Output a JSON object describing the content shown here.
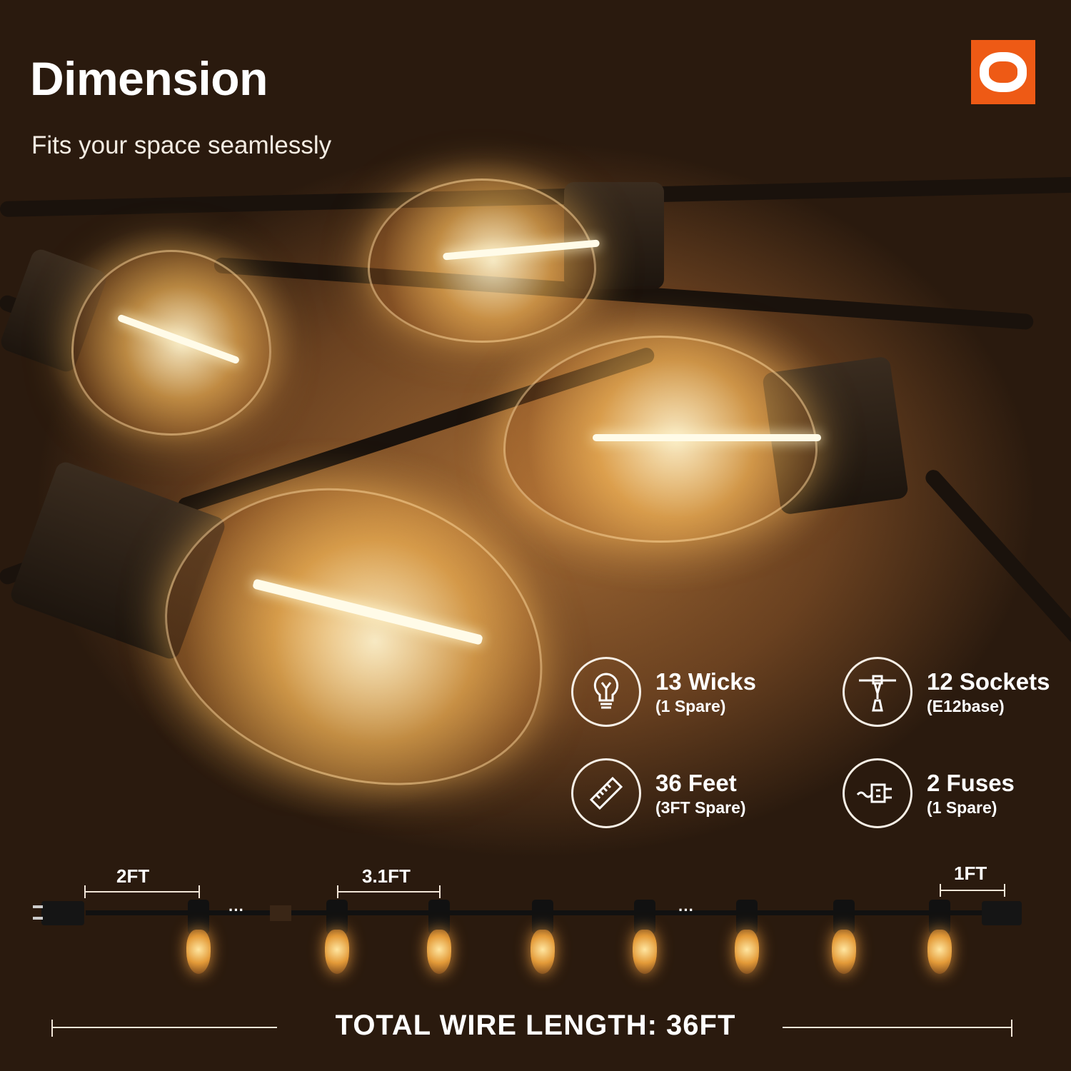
{
  "header": {
    "title": "Dimension",
    "subtitle": "Fits your space seamlessly"
  },
  "brand": {
    "logo_color": "#ee5a15",
    "logo_icon": "brand-logo"
  },
  "features": [
    {
      "icon": "bulb-icon",
      "main": "13 Wicks",
      "sub": "(1 Spare)"
    },
    {
      "icon": "socket-icon",
      "main": "12 Sockets",
      "sub": "(E12base)"
    },
    {
      "icon": "ruler-icon",
      "main": "36 Feet",
      "sub": "(3FT Spare)"
    },
    {
      "icon": "fuse-plug-icon",
      "main": "2 Fuses",
      "sub": "(1 Spare)"
    }
  ],
  "diagram": {
    "lead_length": "2FT",
    "spacing": "3.1FT",
    "tail_length": "1FT",
    "ellipsis": "···",
    "total": "TOTAL WIRE LENGTH: 36FT"
  }
}
